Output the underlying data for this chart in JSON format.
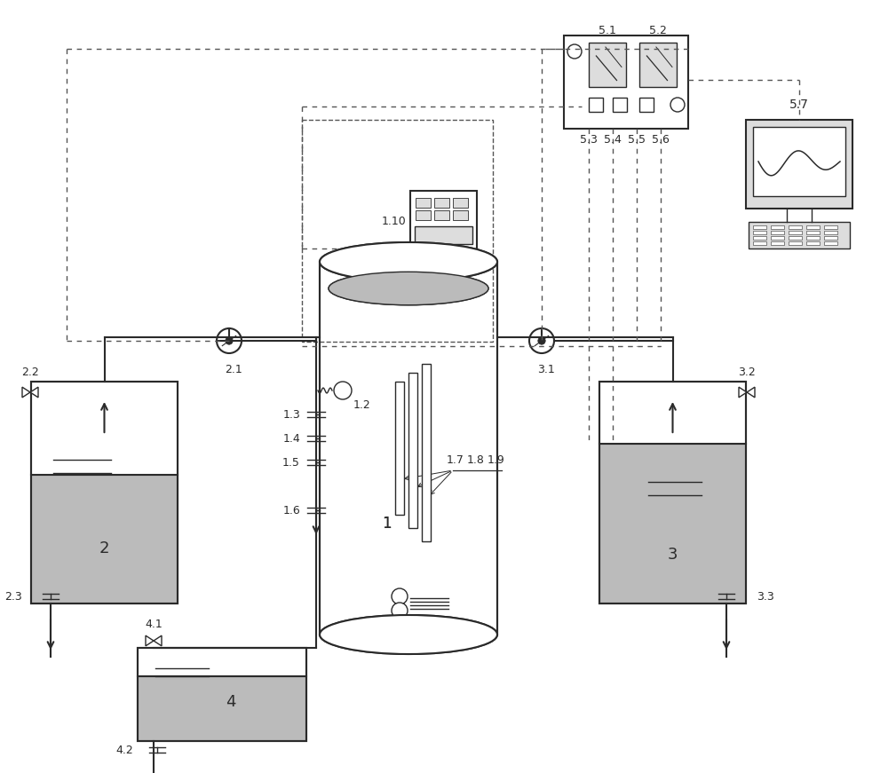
{
  "bg": "#ffffff",
  "lc": "#2a2a2a",
  "gray": "#bbbbbb",
  "lgray": "#dddddd",
  "dc": "#555555",
  "fs": 9
}
